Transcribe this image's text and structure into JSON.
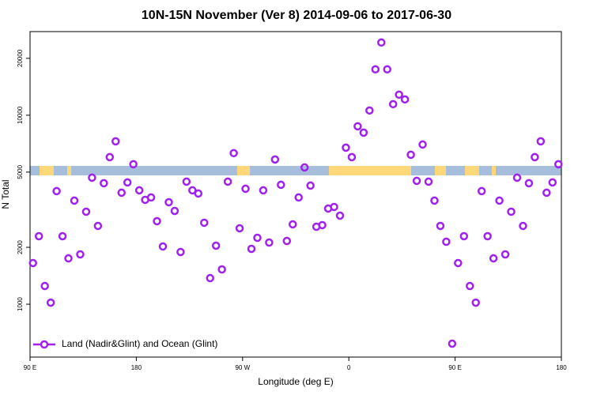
{
  "chart_data": {
    "type": "scatter",
    "title": "10N-15N November (Ver 8)   2014-09-06 to 2017-06-30",
    "x_label": "Longitude (deg E)",
    "y_label": "N Total",
    "log_y": true,
    "legend_position": "bottom-left",
    "xlim": [
      90,
      540
    ],
    "xticks": [
      {
        "value": 90,
        "label": "90 E"
      },
      {
        "value": 180,
        "label": "180"
      },
      {
        "value": 270,
        "label": "90 W"
      },
      {
        "value": 360,
        "label": "0"
      },
      {
        "value": 450,
        "label": "90 E"
      },
      {
        "value": 540,
        "label": "180"
      }
    ],
    "ylim": [
      525,
      27700
    ],
    "yticks": [
      1000,
      2000,
      5000,
      10000,
      20000
    ],
    "series": [
      {
        "name": "Land (Nadir&Glint) and Ocean (Glint)",
        "color": "#a020f0",
        "x": [
          92.5,
          97.5,
          102.5,
          107.5,
          112.5,
          117.5,
          122.5,
          127.5,
          132.5,
          137.5,
          142.5,
          147.5,
          152.5,
          157.5,
          162.5,
          167.5,
          172.5,
          177.5,
          182.5,
          187.5,
          192.5,
          197.5,
          202.5,
          207.5,
          212.5,
          217.5,
          222.5,
          227.5,
          232.5,
          237.5,
          242.5,
          247.5,
          252.5,
          257.5,
          262.5,
          267.5,
          272.5,
          277.5,
          282.5,
          287.5,
          292.5,
          297.5,
          302.5,
          307.5,
          312.5,
          317.5,
          322.5,
          327.5,
          332.5,
          337.5,
          342.5,
          347.5,
          352.5,
          357.5,
          362.5,
          367.5,
          372.5,
          377.5,
          382.5,
          387.5,
          392.5,
          397.5,
          402.5,
          407.5,
          412.5,
          417.5,
          422.5,
          427.5,
          432.5,
          437.5,
          442.5,
          447.5,
          452.5,
          457.5,
          462.5,
          467.5,
          472.5,
          477.5,
          482.5,
          487.5,
          492.5,
          497.5,
          502.5,
          507.5,
          512.5,
          517.5,
          522.5,
          527.5,
          532.5,
          537.5
        ],
        "values": [
          1651,
          2290,
          1248,
          1019,
          3966,
          2290,
          1748,
          3533,
          1835,
          3087,
          4671,
          2596,
          4368,
          6001,
          7275,
          3890,
          4410,
          5503,
          4004,
          3567,
          3672,
          2750,
          2021,
          3465,
          3116,
          1889,
          4452,
          4004,
          3853,
          2698,
          1374,
          2040,
          1528,
          4452,
          6300,
          2522,
          4082,
          1963,
          2246,
          4004,
          2120,
          5832,
          4283,
          2161,
          2646,
          3672,
          5294,
          4242,
          2570,
          2621,
          3208,
          3270,
          2942,
          6736,
          6001,
          8738,
          8088,
          10596,
          17485,
          24259,
          17485,
          11444,
          12845,
          12123,
          6178,
          4495,
          7000,
          4452,
          3533,
          2596,
          2140,
          618,
          1651,
          2290,
          1248,
          1019,
          3966,
          2290,
          1748,
          3533,
          1835,
          3087,
          4671,
          2596,
          4368,
          6001,
          7275,
          3890,
          4410,
          5503
        ]
      }
    ]
  }
}
